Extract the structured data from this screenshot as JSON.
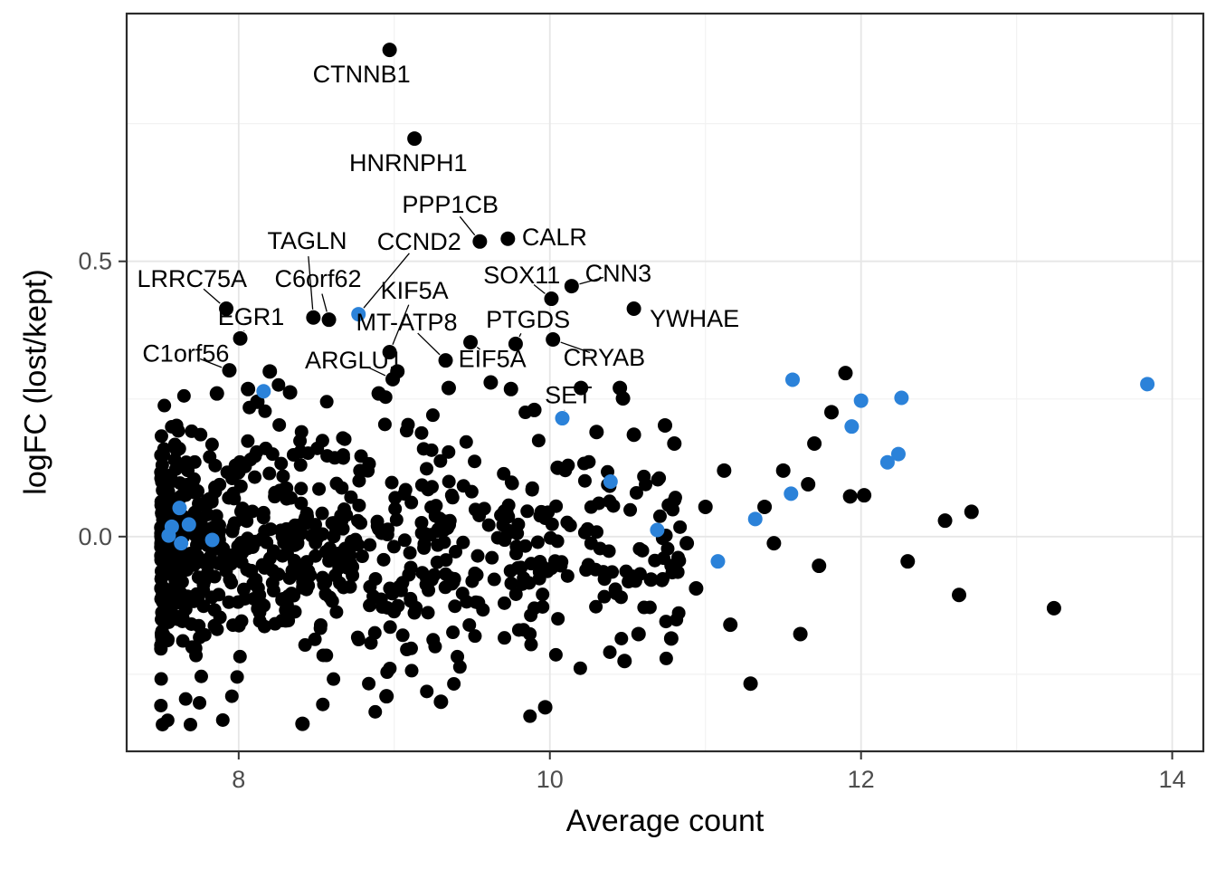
{
  "chart_data": {
    "type": "scatter",
    "title": "",
    "xlabel": "Average count",
    "ylabel": "logFC (lost/kept)",
    "xlim": [
      7.28,
      14.2
    ],
    "ylim": [
      -0.39,
      0.95
    ],
    "x_major_ticks": [
      8,
      10,
      12,
      14
    ],
    "x_tick_labels": [
      "8",
      "10",
      "12",
      "14"
    ],
    "x_minor_gridlines": [
      9,
      11,
      13
    ],
    "y_major_ticks": [
      0.5,
      0.0
    ],
    "y_tick_labels": [
      "0.5",
      "0.0"
    ],
    "y_minor_gridlines": [
      0.75,
      0.25,
      -0.25
    ],
    "grid": "on",
    "legend": "none",
    "colors": {
      "point": "#000000",
      "highlight": "#2b82d9",
      "grid_major": "#e6e6e6",
      "grid_minor": "#f2f2f2",
      "panel_bg": "#ffffff",
      "border": "#2b2b2b",
      "tick_text": "#4d4d4d"
    },
    "labeled_genes": [
      {
        "gene": "CTNNB1",
        "x": 8.97,
        "y": 0.884,
        "lx": 8.79,
        "ly": 0.84,
        "seg": false,
        "blue": false
      },
      {
        "gene": "HNRNPH1",
        "x": 9.13,
        "y": 0.723,
        "lx": 9.09,
        "ly": 0.679,
        "seg": false,
        "blue": false
      },
      {
        "gene": "PPP1CB",
        "x": 9.55,
        "y": 0.536,
        "lx": 9.36,
        "ly": 0.603,
        "seg": true,
        "blue": false
      },
      {
        "gene": "CALR",
        "x": 9.73,
        "y": 0.541,
        "lx": 10.03,
        "ly": 0.544,
        "seg": false,
        "blue": false
      },
      {
        "gene": "TAGLN",
        "x": 8.48,
        "y": 0.398,
        "lx": 8.44,
        "ly": 0.537,
        "seg": true,
        "blue": false
      },
      {
        "gene": "CCND2",
        "x": 8.77,
        "y": 0.404,
        "lx": 9.16,
        "ly": 0.536,
        "seg": true,
        "blue": true
      },
      {
        "gene": "SOX11",
        "x": 10.01,
        "y": 0.432,
        "lx": 9.82,
        "ly": 0.475,
        "seg": true,
        "blue": false
      },
      {
        "gene": "CNN3",
        "x": 10.14,
        "y": 0.455,
        "lx": 10.44,
        "ly": 0.478,
        "seg": true,
        "blue": false
      },
      {
        "gene": "LRRC75A",
        "x": 7.92,
        "y": 0.414,
        "lx": 7.7,
        "ly": 0.468,
        "seg": true,
        "blue": false
      },
      {
        "gene": "C6orf62",
        "x": 8.58,
        "y": 0.394,
        "lx": 8.51,
        "ly": 0.468,
        "seg": true,
        "blue": false
      },
      {
        "gene": "KIF5A",
        "x": 8.97,
        "y": 0.335,
        "lx": 9.13,
        "ly": 0.447,
        "seg": true,
        "blue": false
      },
      {
        "gene": "EGR1",
        "x": 8.01,
        "y": 0.36,
        "lx": 8.08,
        "ly": 0.399,
        "seg": true,
        "blue": false
      },
      {
        "gene": "MT-ATP8",
        "x": 9.33,
        "y": 0.32,
        "lx": 9.08,
        "ly": 0.389,
        "seg": true,
        "blue": false
      },
      {
        "gene": "PTGDS",
        "x": 9.78,
        "y": 0.35,
        "lx": 9.86,
        "ly": 0.394,
        "seg": true,
        "blue": false
      },
      {
        "gene": "YWHAE",
        "x": 10.54,
        "y": 0.414,
        "lx": 10.93,
        "ly": 0.396,
        "seg": false,
        "blue": false
      },
      {
        "gene": "C1orf56",
        "x": 7.94,
        "y": 0.302,
        "lx": 7.66,
        "ly": 0.333,
        "seg": true,
        "blue": false
      },
      {
        "gene": "ARGLU1",
        "x": 8.99,
        "y": 0.286,
        "lx": 8.74,
        "ly": 0.32,
        "seg": true,
        "blue": false
      },
      {
        "gene": "EIF5A",
        "x": 9.49,
        "y": 0.353,
        "lx": 9.63,
        "ly": 0.323,
        "seg": true,
        "blue": false
      },
      {
        "gene": "CRYAB",
        "x": 10.02,
        "y": 0.358,
        "lx": 10.35,
        "ly": 0.325,
        "seg": true,
        "blue": false
      },
      {
        "gene": "SET",
        "x": 10.08,
        "y": 0.215,
        "lx": 10.12,
        "ly": 0.257,
        "seg": true,
        "blue": true
      }
    ],
    "blue_points": [
      [
        7.55,
        0.002
      ],
      [
        7.57,
        0.018
      ],
      [
        7.62,
        0.052
      ],
      [
        7.63,
        -0.012
      ],
      [
        7.68,
        0.022
      ],
      [
        7.83,
        -0.006
      ],
      [
        8.16,
        0.264
      ],
      [
        10.39,
        0.1
      ],
      [
        10.69,
        0.012
      ],
      [
        11.08,
        -0.045
      ],
      [
        11.32,
        0.032
      ],
      [
        11.55,
        0.078
      ],
      [
        11.56,
        0.285
      ],
      [
        11.94,
        0.2
      ],
      [
        12.0,
        0.247
      ],
      [
        12.17,
        0.135
      ],
      [
        12.24,
        0.15
      ],
      [
        12.26,
        0.252
      ],
      [
        13.84,
        0.277
      ]
    ],
    "extra_black_points": [
      [
        11.81,
        0.226
      ],
      [
        11.9,
        0.297
      ],
      [
        11.7,
        0.169
      ],
      [
        11.93,
        0.073
      ],
      [
        12.54,
        0.029
      ],
      [
        12.71,
        0.045
      ],
      [
        12.63,
        -0.106
      ],
      [
        13.24,
        -0.13
      ],
      [
        11.29,
        -0.267
      ],
      [
        11.61,
        -0.177
      ],
      [
        11.16,
        -0.16
      ],
      [
        10.94,
        -0.094
      ],
      [
        10.88,
        -0.012
      ],
      [
        11.0,
        0.054
      ],
      [
        11.12,
        0.12
      ],
      [
        10.8,
        0.169
      ],
      [
        10.74,
        0.202
      ],
      [
        10.47,
        0.251
      ],
      [
        10.54,
        0.185
      ],
      [
        10.65,
        -0.078
      ],
      [
        10.57,
        -0.177
      ],
      [
        10.48,
        -0.226
      ],
      [
        10.78,
        -0.185
      ],
      [
        11.73,
        -0.053
      ],
      [
        11.44,
        -0.012
      ],
      [
        11.38,
        0.054
      ],
      [
        11.5,
        0.12
      ],
      [
        12.3,
        -0.045
      ],
      [
        11.66,
        0.095
      ],
      [
        12.02,
        0.075
      ],
      [
        8.2,
        0.3
      ],
      [
        8.33,
        0.262
      ],
      [
        8.06,
        0.268
      ],
      [
        9.02,
        0.3
      ],
      [
        9.35,
        0.27
      ],
      [
        9.62,
        0.28
      ],
      [
        9.75,
        0.268
      ],
      [
        8.9,
        0.26
      ],
      [
        10.2,
        0.27
      ],
      [
        10.45,
        0.27
      ],
      [
        7.86,
        0.26
      ],
      [
        8.12,
        0.245
      ],
      [
        9.9,
        0.23
      ],
      [
        10.3,
        0.19
      ],
      [
        10.05,
        0.125
      ],
      [
        9.97,
        -0.31
      ],
      [
        8.41,
        -0.34
      ],
      [
        8.95,
        -0.29
      ],
      [
        9.3,
        -0.3
      ]
    ],
    "cloud": {
      "seed": 7,
      "count": 820,
      "x_min": 7.5,
      "x_span": 3.35,
      "x_pow": 2.2,
      "y_mean": -0.02,
      "y_sd": 0.105,
      "y_clip": [
        -0.345,
        0.315
      ]
    }
  }
}
